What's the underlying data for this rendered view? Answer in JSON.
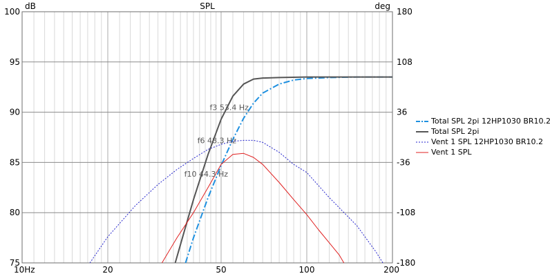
{
  "chart_data": {
    "type": "line",
    "title": "SPL",
    "x_scale": "log",
    "xlim": [
      10,
      200
    ],
    "ylim": [
      75,
      100
    ],
    "y2lim": [
      -180,
      180
    ],
    "y_unit": "dB",
    "y2_unit": "deg",
    "x_ticks": [
      {
        "value": 10,
        "label": "10Hz"
      },
      {
        "value": 20,
        "label": "20"
      },
      {
        "value": 50,
        "label": "50"
      },
      {
        "value": 100,
        "label": "100"
      },
      {
        "value": 200,
        "label": "200"
      }
    ],
    "y_ticks": [
      {
        "value": 75,
        "label": "75"
      },
      {
        "value": 80,
        "label": "80"
      },
      {
        "value": 85,
        "label": "85"
      },
      {
        "value": 90,
        "label": "90"
      },
      {
        "value": 95,
        "label": "95"
      },
      {
        "value": 100,
        "label": "100"
      }
    ],
    "y2_ticks": [
      {
        "value": -180,
        "label": "-180"
      },
      {
        "value": -108,
        "label": "-108"
      },
      {
        "value": -36,
        "label": "-36"
      },
      {
        "value": 36,
        "label": "36"
      },
      {
        "value": 108,
        "label": "108"
      },
      {
        "value": 180,
        "label": "180"
      }
    ],
    "grid": true,
    "legend_position": "right",
    "series": [
      {
        "name": "Total SPL 2pi 12HP1030 BR10.2",
        "color": "#1e90e0",
        "dash": "dashdot",
        "width": 2,
        "points": [
          [
            37.5,
            75
          ],
          [
            40,
            77.5
          ],
          [
            45,
            81.5
          ],
          [
            50,
            84.7
          ],
          [
            55,
            87.3
          ],
          [
            60,
            89.4
          ],
          [
            65,
            90.9
          ],
          [
            70,
            91.9
          ],
          [
            80,
            92.8
          ],
          [
            90,
            93.2
          ],
          [
            100,
            93.35
          ],
          [
            120,
            93.45
          ],
          [
            150,
            93.5
          ],
          [
            200,
            93.5
          ]
        ]
      },
      {
        "name": "Total SPL 2pi",
        "color": "#555555",
        "dash": "solid",
        "width": 2,
        "points": [
          [
            34.5,
            75
          ],
          [
            37,
            78
          ],
          [
            40,
            81.3
          ],
          [
            45,
            85.8
          ],
          [
            50,
            89.3
          ],
          [
            55,
            91.6
          ],
          [
            60,
            92.8
          ],
          [
            65,
            93.3
          ],
          [
            70,
            93.4
          ],
          [
            80,
            93.45
          ],
          [
            100,
            93.5
          ],
          [
            150,
            93.5
          ],
          [
            200,
            93.5
          ]
        ]
      },
      {
        "name": "Vent 1 SPL 12HP1030 BR10.2",
        "color": "#2222cc",
        "dash": "dotted",
        "width": 1,
        "points": [
          [
            17.3,
            75
          ],
          [
            20,
            77.6
          ],
          [
            25,
            80.7
          ],
          [
            30,
            82.8
          ],
          [
            35,
            84.3
          ],
          [
            40,
            85.4
          ],
          [
            45,
            86.3
          ],
          [
            50,
            86.8
          ],
          [
            55,
            87.1
          ],
          [
            60,
            87.2
          ],
          [
            65,
            87.2
          ],
          [
            70,
            87.0
          ],
          [
            80,
            86.0
          ],
          [
            90,
            84.8
          ],
          [
            100,
            84.0
          ],
          [
            120,
            81.5
          ],
          [
            150,
            78.7
          ],
          [
            175,
            76.1
          ],
          [
            185,
            75
          ]
        ]
      },
      {
        "name": "Vent 1 SPL",
        "color": "#e02020",
        "dash": "solid",
        "width": 1,
        "points": [
          [
            31,
            75
          ],
          [
            35,
            77.5
          ],
          [
            40,
            80
          ],
          [
            45,
            82.5
          ],
          [
            50,
            84.8
          ],
          [
            55,
            85.8
          ],
          [
            60,
            85.9
          ],
          [
            65,
            85.5
          ],
          [
            70,
            84.8
          ],
          [
            80,
            83
          ],
          [
            90,
            81.3
          ],
          [
            100,
            79.8
          ],
          [
            110,
            78.3
          ],
          [
            120,
            77
          ],
          [
            130,
            75.8
          ],
          [
            135,
            75
          ]
        ]
      }
    ],
    "annotations": [
      {
        "text": "f3 53.4 Hz",
        "x": 53.4,
        "y": 90.2
      },
      {
        "text": "f6 48.3 Hz",
        "x": 48.3,
        "y": 86.9
      },
      {
        "text": "f10 44.3 Hz",
        "x": 44.3,
        "y": 83.6
      }
    ]
  }
}
